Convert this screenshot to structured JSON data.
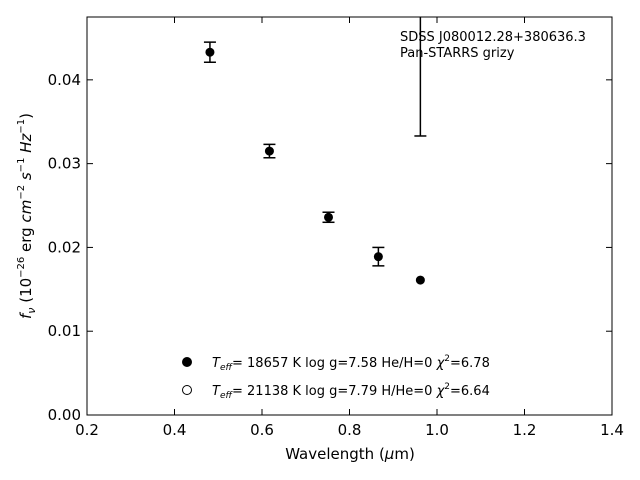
{
  "chart_data": {
    "type": "scatter",
    "xlabel": "Wavelength (μm)",
    "ylabel": "f_ν (10^-26 erg cm^-2 s^-1 Hz^-1)",
    "xlim": [
      0.2,
      1.4
    ],
    "ylim": [
      0.0,
      0.0475
    ],
    "xticks": [
      0.2,
      0.4,
      0.6,
      0.8,
      1.0,
      1.2,
      1.4
    ],
    "xtick_labels": [
      "0.2",
      "0.4",
      "0.6",
      "0.8",
      "1.0",
      "1.2",
      "1.4"
    ],
    "yticks": [
      0.0,
      0.01,
      0.02,
      0.03,
      0.04
    ],
    "ytick_labels": [
      "0.00",
      "0.01",
      "0.02",
      "0.03",
      "0.04"
    ],
    "grid": false,
    "annotation": {
      "line1": "SDSS J080012.28+380636.3",
      "line2": "Pan-STARRS grizy"
    },
    "observed": [
      {
        "x": 0.481,
        "y": 0.0433,
        "err": 0.0012
      },
      {
        "x": 0.617,
        "y": 0.0315,
        "err": 0.0008
      },
      {
        "x": 0.752,
        "y": 0.0236,
        "err": 0.0006
      },
      {
        "x": 0.866,
        "y": 0.0189,
        "err": 0.0011
      },
      {
        "x": 0.962,
        "y": 0.0498,
        "err": 0.0165
      }
    ],
    "model_points": [
      {
        "x": 0.962,
        "y": 0.0161
      }
    ],
    "legend": [
      {
        "marker": "filled-circle",
        "teff": "18657",
        "logg": "7.58",
        "comp": "He/H=0",
        "chi2": "6.78"
      },
      {
        "marker": "open-circle",
        "teff": "21138",
        "logg": "7.79",
        "comp": "H/He=0",
        "chi2": "6.64"
      }
    ],
    "legend_placement": "lower-center"
  }
}
